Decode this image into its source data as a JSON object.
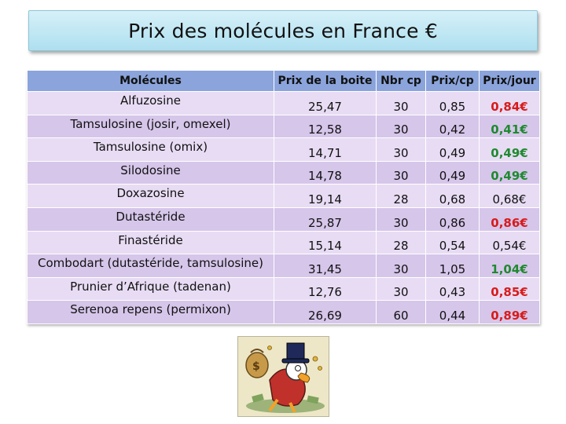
{
  "title": "Prix des molécules en France €",
  "table": {
    "headers": [
      "Molécules",
      "Prix de la boite",
      "Nbr cp",
      "Prix/cp",
      "Prix/jour"
    ],
    "rows": [
      {
        "molecule": "Alfuzosine",
        "prix_boite": "25,47",
        "nbr_cp": "30",
        "prix_cp": "0,85",
        "prix_jour": "0,84€",
        "highlight": "red"
      },
      {
        "molecule": "Tamsulosine (josir, omexel)",
        "prix_boite": "12,58",
        "nbr_cp": "30",
        "prix_cp": "0,42",
        "prix_jour": "0,41€",
        "highlight": "green"
      },
      {
        "molecule": "Tamsulosine (omix)",
        "prix_boite": "14,71",
        "nbr_cp": "30",
        "prix_cp": "0,49",
        "prix_jour": "0,49€",
        "highlight": "green"
      },
      {
        "molecule": "Silodosine",
        "prix_boite": "14,78",
        "nbr_cp": "30",
        "prix_cp": "0,49",
        "prix_jour": "0,49€",
        "highlight": "green"
      },
      {
        "molecule": "Doxazosine",
        "prix_boite": "19,14",
        "nbr_cp": "28",
        "prix_cp": "0,68",
        "prix_jour": "0,68€",
        "highlight": "normal"
      },
      {
        "molecule": "Dutastéride",
        "prix_boite": "25,87",
        "nbr_cp": "30",
        "prix_cp": "0,86",
        "prix_jour": "0,86€",
        "highlight": "red"
      },
      {
        "molecule": "Finastéride",
        "prix_boite": "15,14",
        "nbr_cp": "28",
        "prix_cp": "0,54",
        "prix_jour": "0,54€",
        "highlight": "normal"
      },
      {
        "molecule": "Combodart (dutastéride, tamsulosine)",
        "prix_boite": "31,45",
        "nbr_cp": "30",
        "prix_cp": "1,05",
        "prix_jour": "1,04€",
        "highlight": "green"
      },
      {
        "molecule": "Prunier d’Afrique (tadenan)",
        "prix_boite": "12,76",
        "nbr_cp": "30",
        "prix_cp": "0,43",
        "prix_jour": "0,85€",
        "highlight": "red"
      },
      {
        "molecule": "Serenoa repens (permixon)",
        "prix_boite": "26,69",
        "nbr_cp": "60",
        "prix_cp": "0,44",
        "prix_jour": "0,89€",
        "highlight": "red"
      }
    ]
  },
  "colors": {
    "header_bg": "#8ba4dc",
    "row_light": "#e8dcf4",
    "row_dark": "#d6c6ea",
    "price_red": "#d81b1b",
    "price_green": "#1e8a2e"
  },
  "picture": {
    "icon": "cartoon-money-illustration"
  }
}
